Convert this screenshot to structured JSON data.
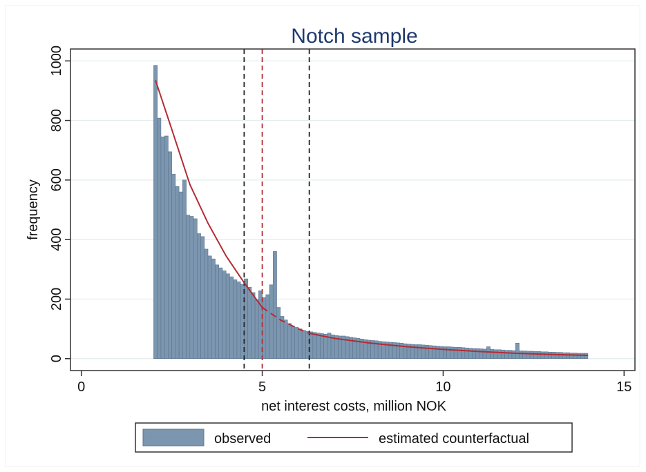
{
  "chart_data": {
    "type": "bar",
    "title": "Notch sample",
    "xlabel": "net interest costs, million NOK",
    "ylabel": "frequency",
    "xlim": [
      -0.3,
      15.3
    ],
    "ylim": [
      -40,
      1040
    ],
    "xticks": [
      0,
      5,
      10,
      15
    ],
    "yticks": [
      0,
      200,
      400,
      600,
      800,
      1000
    ],
    "grid": true,
    "legend_position": "bottom",
    "bin_width": 0.1,
    "bin_start": 2.0,
    "series": [
      {
        "name": "observed",
        "kind": "histogram",
        "color": "#7c96b0",
        "values": [
          985,
          808,
          745,
          748,
          695,
          620,
          578,
          560,
          600,
          482,
          478,
          470,
          420,
          410,
          368,
          345,
          335,
          315,
          305,
          295,
          285,
          275,
          265,
          258,
          250,
          268,
          240,
          222,
          198,
          228,
          205,
          215,
          248,
          360,
          172,
          142,
          130,
          118,
          110,
          105,
          100,
          95,
          92,
          90,
          88,
          86,
          84,
          82,
          86,
          80,
          78,
          76,
          76,
          74,
          72,
          70,
          68,
          66,
          64,
          62,
          61,
          60,
          58,
          57,
          56,
          55,
          54,
          53,
          52,
          50,
          49,
          48,
          47,
          47,
          46,
          45,
          44,
          43,
          42,
          41,
          40,
          40,
          39,
          38,
          38,
          37,
          36,
          35,
          34,
          34,
          33,
          32,
          40,
          31,
          30,
          30,
          29,
          28,
          28,
          27,
          52,
          26,
          26,
          25,
          25,
          24,
          24,
          23,
          23,
          22,
          22,
          21,
          21,
          20,
          20,
          19,
          19,
          18,
          18,
          18
        ]
      },
      {
        "name": "estimated counterfactual",
        "kind": "curve",
        "color": "#b22c34",
        "x_from": 2.05,
        "x_to": 14.0,
        "dashed_from": 5.0,
        "dashed_to": 6.3,
        "formula_points": [
          [
            2.05,
            935
          ],
          [
            2.5,
            770
          ],
          [
            3.0,
            585
          ],
          [
            3.5,
            455
          ],
          [
            4.0,
            345
          ],
          [
            4.5,
            255
          ],
          [
            5.0,
            172
          ],
          [
            5.5,
            130
          ],
          [
            6.0,
            100
          ],
          [
            6.3,
            85
          ],
          [
            7.0,
            68
          ],
          [
            8.0,
            52
          ],
          [
            9.0,
            40
          ],
          [
            10.0,
            31
          ],
          [
            11.0,
            24
          ],
          [
            12.0,
            18
          ],
          [
            13.0,
            14
          ],
          [
            14.0,
            11
          ]
        ]
      }
    ],
    "reference_lines": [
      {
        "x": 4.5,
        "color": "#222222",
        "style": "dashed"
      },
      {
        "x": 5.0,
        "color": "#b22c34",
        "style": "dashed"
      },
      {
        "x": 6.3,
        "color": "#222222",
        "style": "dashed"
      }
    ]
  },
  "legend": {
    "observed_label": "observed",
    "counterfactual_label": "estimated counterfactual"
  }
}
